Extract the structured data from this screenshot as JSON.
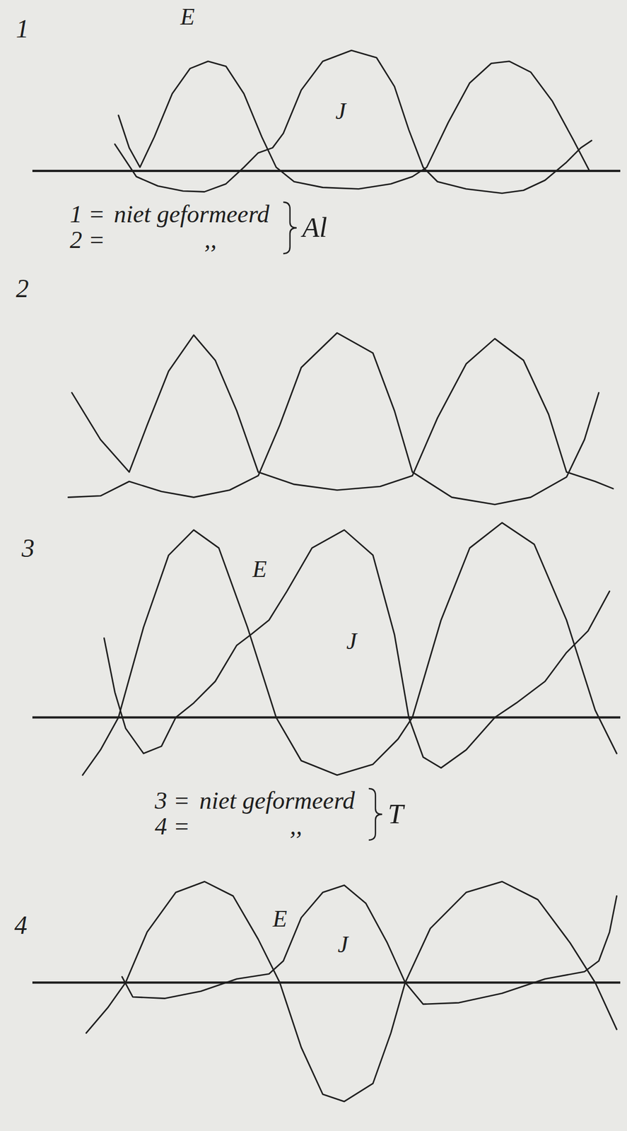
{
  "chart_data": [
    {
      "type": "line",
      "title": "1",
      "xlim": [
        0.45,
        8.65
      ],
      "ylim": [
        -0.4,
        1.75
      ],
      "yticks": [
        0
      ],
      "tick_labels": false,
      "series": [
        {
          "name": "E",
          "color": "#1e1e1e",
          "x": [
            1.65,
            1.8,
            1.95,
            2.15,
            2.4,
            2.65,
            2.9,
            3.15,
            3.4,
            3.65,
            3.85,
            4.1,
            4.5,
            5.0,
            5.45,
            5.75,
            5.95,
            6.25,
            6.55,
            6.85,
            7.1,
            7.4,
            7.7,
            8.0,
            8.22
          ],
          "values": [
            0.77,
            0.32,
            0.05,
            0.47,
            1.07,
            1.42,
            1.52,
            1.45,
            1.07,
            0.47,
            0.05,
            -0.15,
            -0.23,
            -0.25,
            -0.18,
            -0.08,
            0.05,
            0.67,
            1.22,
            1.49,
            1.52,
            1.37,
            0.97,
            0.42,
            0.0
          ]
        },
        {
          "name": "J",
          "color": "#1e1e1e",
          "x": [
            1.6,
            1.9,
            2.2,
            2.55,
            2.85,
            3.15,
            3.4,
            3.6,
            3.8,
            3.95,
            4.2,
            4.5,
            4.9,
            5.25,
            5.5,
            5.7,
            5.9,
            6.1,
            6.5,
            7.0,
            7.3,
            7.6,
            7.9,
            8.1,
            8.25
          ],
          "values": [
            0.37,
            -0.08,
            -0.21,
            -0.28,
            -0.29,
            -0.18,
            0.05,
            0.25,
            0.32,
            0.52,
            1.12,
            1.52,
            1.67,
            1.57,
            1.17,
            0.57,
            0.05,
            -0.15,
            -0.25,
            -0.31,
            -0.27,
            -0.13,
            0.12,
            0.32,
            0.42
          ]
        }
      ]
    },
    {
      "type": "line",
      "title": "2",
      "xlim": [
        0.45,
        8.65
      ],
      "ylim": [
        -0.5,
        2.0
      ],
      "yticks": [],
      "tick_labels": false,
      "series": [
        {
          "color": "#1e1e1e",
          "x": [
            1.0,
            1.4,
            1.8,
            2.05,
            2.35,
            2.7,
            3.0,
            3.3,
            3.6,
            4.1,
            4.7,
            5.3,
            5.75,
            6.1,
            6.5,
            6.9,
            7.3,
            7.65,
            7.9,
            8.3,
            8.55
          ],
          "values": [
            1.1,
            0.45,
            0,
            0.65,
            1.4,
            1.9,
            1.55,
            0.85,
            0,
            -0.17,
            -0.25,
            -0.2,
            -0.05,
            0.75,
            1.5,
            1.85,
            1.55,
            0.8,
            0,
            -0.13,
            -0.23
          ]
        },
        {
          "color": "#1e1e1e",
          "x": [
            0.95,
            1.4,
            1.8,
            2.25,
            2.7,
            3.2,
            3.6,
            3.9,
            4.2,
            4.7,
            5.2,
            5.5,
            5.75,
            6.3,
            6.9,
            7.4,
            7.9,
            8.15,
            8.35
          ],
          "values": [
            -0.35,
            -0.33,
            -0.13,
            -0.27,
            -0.35,
            -0.25,
            -0.05,
            0.65,
            1.45,
            1.93,
            1.65,
            0.85,
            0,
            -0.35,
            -0.45,
            -0.35,
            -0.07,
            0.45,
            1.1
          ]
        }
      ]
    },
    {
      "type": "line",
      "title": "3",
      "xlim": [
        0.45,
        8.65
      ],
      "ylim": [
        -0.85,
        2.75
      ],
      "yticks": [
        0
      ],
      "tick_labels": false,
      "series": [
        {
          "name": "E",
          "color": "#1e1e1e",
          "x": [
            1.15,
            1.4,
            1.65,
            2.0,
            2.35,
            2.7,
            3.05,
            3.45,
            3.85,
            4.2,
            4.7,
            5.2,
            5.55,
            5.75,
            6.15,
            6.55,
            7.0,
            7.45,
            7.9,
            8.3,
            8.6
          ],
          "values": [
            -0.8,
            -0.45,
            0,
            1.25,
            2.25,
            2.6,
            2.35,
            1.25,
            0,
            -0.6,
            -0.8,
            -0.65,
            -0.3,
            0,
            1.35,
            2.35,
            2.7,
            2.4,
            1.35,
            0.1,
            -0.5
          ]
        },
        {
          "name": "J",
          "color": "#1e1e1e",
          "x": [
            1.45,
            1.6,
            1.75,
            2.0,
            2.25,
            2.45,
            2.7,
            3.0,
            3.3,
            3.5,
            3.75,
            4.0,
            4.35,
            4.8,
            5.2,
            5.5,
            5.7,
            5.9,
            6.15,
            6.5,
            6.9,
            7.2,
            7.6,
            7.9,
            8.2,
            8.5
          ],
          "values": [
            1.1,
            0.35,
            -0.15,
            -0.5,
            -0.4,
            0,
            0.2,
            0.5,
            1.0,
            1.15,
            1.35,
            1.75,
            2.35,
            2.6,
            2.25,
            1.15,
            0,
            -0.55,
            -0.7,
            -0.45,
            0,
            0.2,
            0.5,
            0.9,
            1.2,
            1.75
          ]
        }
      ]
    },
    {
      "type": "line",
      "title": "4",
      "xlim": [
        0.45,
        8.65
      ],
      "ylim": [
        -1.7,
        1.45
      ],
      "yticks": [
        0
      ],
      "tick_labels": false,
      "series": [
        {
          "name": "E",
          "color": "#1e1e1e",
          "x": [
            1.2,
            1.5,
            1.75,
            2.05,
            2.45,
            2.85,
            3.25,
            3.6,
            3.9,
            4.2,
            4.5,
            4.8,
            5.2,
            5.45,
            5.65,
            6.0,
            6.5,
            7.0,
            7.5,
            7.95,
            8.3,
            8.6
          ],
          "values": [
            -0.7,
            -0.35,
            0,
            0.7,
            1.25,
            1.4,
            1.2,
            0.6,
            0,
            -0.9,
            -1.55,
            -1.65,
            -1.4,
            -0.7,
            0,
            0.75,
            1.25,
            1.4,
            1.15,
            0.55,
            0,
            -0.65
          ]
        },
        {
          "name": "J",
          "color": "#1e1e1e",
          "x": [
            1.7,
            1.85,
            2.3,
            2.8,
            3.3,
            3.75,
            3.95,
            4.2,
            4.5,
            4.8,
            5.1,
            5.4,
            5.65,
            5.9,
            6.4,
            7.0,
            7.6,
            8.15,
            8.35,
            8.5,
            8.6
          ],
          "values": [
            0.08,
            -0.2,
            -0.22,
            -0.12,
            0.05,
            0.12,
            0.3,
            0.9,
            1.25,
            1.35,
            1.1,
            0.55,
            0,
            -0.3,
            -0.28,
            -0.15,
            0.05,
            0.15,
            0.3,
            0.7,
            1.2
          ]
        }
      ]
    }
  ],
  "captions": [
    {
      "rows": [
        {
          "key": "1 =",
          "text": "niet geformeerd"
        },
        {
          "key": "2 =",
          "text": ",,"
        }
      ],
      "group": "Al"
    },
    {
      "rows": [
        {
          "key": "3 =",
          "text": "niet geformeerd"
        },
        {
          "key": "4 =",
          "text": ",,"
        }
      ],
      "group": "T"
    }
  ]
}
